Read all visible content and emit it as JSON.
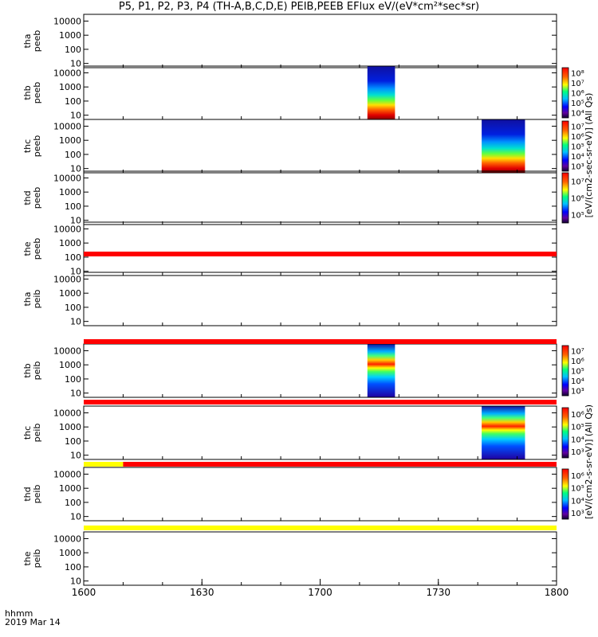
{
  "title": "P5, P1, P2, P3, P4 (TH-A,B,C,D,E) PEIB,PEEB EFlux eV/(eV*cm²*sec*sr)",
  "footer": {
    "time_label": "hhmm",
    "date_label": "2019 Mar 14"
  },
  "chart_data": {
    "type": "heatmap",
    "x_ticks": [
      "1600",
      "1630",
      "1700",
      "1730",
      "1800"
    ],
    "x_range": [
      "16:00",
      "18:00"
    ],
    "y_ticks": [
      "10",
      "100",
      "1000",
      "10000"
    ],
    "y_range": [
      5,
      30000
    ],
    "y_scale": "log",
    "panels": [
      {
        "id": "tha-peeb",
        "label": [
          "tha",
          "peeb"
        ],
        "blocks": []
      },
      {
        "id": "thb-peeb",
        "label": [
          "thb",
          "peeb"
        ],
        "blocks": [
          {
            "start": "17:12",
            "end": "17:19",
            "style": "electron"
          }
        ]
      },
      {
        "id": "thc-peeb",
        "label": [
          "thc",
          "peeb"
        ],
        "blocks": [
          {
            "start": "17:41",
            "end": "17:52",
            "style": "electron"
          }
        ]
      },
      {
        "id": "thd-peeb",
        "label": [
          "thd",
          "peeb"
        ],
        "blocks": []
      },
      {
        "id": "the-peeb",
        "label": [
          "the",
          "peeb"
        ],
        "blocks": []
      },
      {
        "id": "tha-peib",
        "label": [
          "tha",
          "peib"
        ],
        "blocks": []
      },
      {
        "id": "thb-peib",
        "label": [
          "thb",
          "peib"
        ],
        "blocks": [
          {
            "start": "17:12",
            "end": "17:19",
            "style": "ion"
          }
        ]
      },
      {
        "id": "thc-peib",
        "label": [
          "thc",
          "peib"
        ],
        "blocks": [
          {
            "start": "17:41",
            "end": "17:52",
            "style": "ion"
          }
        ]
      },
      {
        "id": "thd-peib",
        "label": [
          "thd",
          "peib"
        ],
        "blocks": []
      },
      {
        "id": "the-peib",
        "label": [
          "the",
          "peib"
        ],
        "blocks": []
      }
    ],
    "status_bars": [
      {
        "after_panel": "the-peeb",
        "segments": [
          {
            "start": "16:00",
            "end": "18:00",
            "color": "#ff0000"
          }
        ]
      },
      {
        "after_panel": "tha-peib",
        "segments": [
          {
            "start": "16:00",
            "end": "18:00",
            "color": "#ff0000"
          }
        ]
      },
      {
        "after_panel": "thb-peib",
        "segments": [
          {
            "start": "16:00",
            "end": "18:00",
            "color": "#ff0000"
          }
        ]
      },
      {
        "after_panel": "thc-peib",
        "segments": [
          {
            "start": "16:00",
            "end": "16:10",
            "color": "#ffff00"
          },
          {
            "start": "16:10",
            "end": "18:00",
            "color": "#ff0000"
          }
        ]
      },
      {
        "after_panel": "thd-peib",
        "segments": [
          {
            "start": "16:00",
            "end": "18:00",
            "color": "#ffff00"
          }
        ]
      }
    ],
    "colorbars": [
      {
        "id": "cb-thb-peeb",
        "panel": "thb-peeb",
        "ticks": [
          "10⁴",
          "10⁵",
          "10⁶",
          "10⁷",
          "10⁸"
        ]
      },
      {
        "id": "cb-thc-peeb",
        "panel": "thc-peeb",
        "ticks": [
          "10³",
          "10⁴",
          "10⁵",
          "10⁶",
          "10⁷"
        ]
      },
      {
        "id": "cb-thd-peeb",
        "panel": "thd-peeb",
        "ticks": [
          "10⁵",
          "10⁶",
          "10⁷"
        ]
      },
      {
        "id": "cb-thb-peib",
        "panel": "thb-peib",
        "ticks": [
          "10³",
          "10⁴",
          "10⁵",
          "10⁶",
          "10⁷"
        ]
      },
      {
        "id": "cb-thc-peib",
        "panel": "thc-peib",
        "ticks": [
          "10³",
          "10⁴",
          "10⁵",
          "10⁶"
        ]
      },
      {
        "id": "cb-thd-peib",
        "panel": "thd-peib",
        "ticks": [
          "10³",
          "10⁴",
          "10⁵",
          "10⁶"
        ]
      }
    ],
    "colorbar_labels": {
      "peeb": "[eV/(cm2-sec-sr-eV)] (All Qs)",
      "peib": "[eV/(cm2-s-sr-eV)] (All Qs)"
    }
  }
}
